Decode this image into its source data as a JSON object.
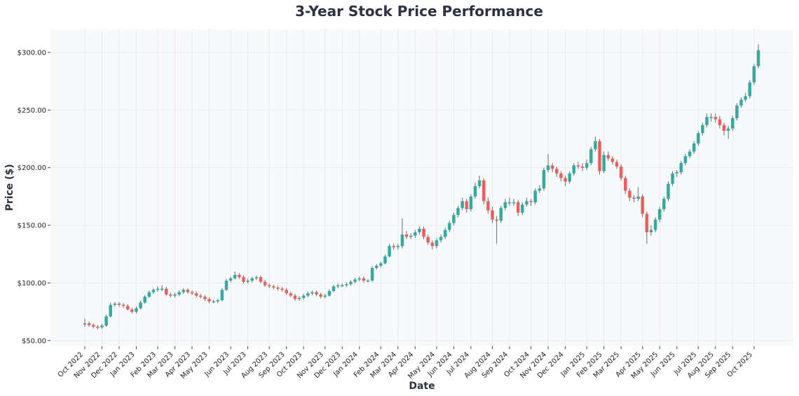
{
  "chart_data": {
    "type": "candlestick",
    "title": "3-Year Stock Price Performance",
    "xlabel": "Date",
    "ylabel": "Price ($)",
    "ylim": [
      45,
      320
    ],
    "yticks": [
      50,
      100,
      150,
      200,
      250,
      300
    ],
    "ytick_labels": [
      "$50.00",
      "$100.00",
      "$150.00",
      "$200.00",
      "$250.00",
      "$300.00"
    ],
    "xtick_labels": [
      "Oct 2022",
      "Nov 2022",
      "Dec 2022",
      "Jan 2023",
      "Feb 2023",
      "Mar 2023",
      "Apr 2023",
      "May 2023",
      "Jun 2023",
      "Jul 2023",
      "Aug 2023",
      "Sep 2023",
      "Oct 2023",
      "Nov 2023",
      "Dec 2023",
      "Jan 2024",
      "Feb 2024",
      "Mar 2024",
      "Apr 2024",
      "May 2024",
      "Jun 2024",
      "Jul 2024",
      "Aug 2024",
      "Sep 2024",
      "Oct 2024",
      "Nov 2024",
      "Dec 2024",
      "Jan 2025",
      "Feb 2025",
      "Mar 2025",
      "Apr 2025",
      "May 2025",
      "Jun 2025",
      "Jul 2025",
      "Aug 2025",
      "Sep 2025",
      "Oct 2025"
    ],
    "grid": true,
    "colors": {
      "up": "#26a69a",
      "down": "#ef5350",
      "background": "#f8f9fb",
      "grid": "#e9eaee",
      "title": "#2d3142"
    },
    "columns": [
      "date",
      "open",
      "high",
      "low",
      "close"
    ],
    "candles": [
      [
        "2022-10-10",
        64,
        69,
        62,
        65
      ],
      [
        "2022-10-17",
        65,
        66.5,
        62,
        63.5
      ],
      [
        "2022-10-24",
        63.5,
        65,
        60.5,
        62
      ],
      [
        "2022-10-31",
        62,
        63.5,
        60,
        61.5
      ],
      [
        "2022-11-07",
        61.5,
        64.5,
        60,
        63
      ],
      [
        "2022-11-14",
        63,
        72.5,
        62,
        71
      ],
      [
        "2022-11-21",
        71,
        83,
        70,
        81
      ],
      [
        "2022-11-28",
        81,
        83.5,
        79.5,
        82
      ],
      [
        "2022-12-05",
        82,
        83.5,
        79.5,
        81
      ],
      [
        "2022-12-12",
        81,
        82.5,
        78.5,
        80
      ],
      [
        "2022-12-19",
        80,
        81.5,
        76,
        77
      ],
      [
        "2022-12-26",
        77,
        78.5,
        73.5,
        75
      ],
      [
        "2023-01-02",
        75,
        79.5,
        73.5,
        78
      ],
      [
        "2023-01-09",
        78,
        84.5,
        77,
        83
      ],
      [
        "2023-01-16",
        83,
        89.5,
        82,
        88
      ],
      [
        "2023-01-23",
        88,
        93.5,
        87,
        92
      ],
      [
        "2023-01-30",
        92,
        95.5,
        90.5,
        94
      ],
      [
        "2023-02-06",
        94,
        97,
        92.5,
        95
      ],
      [
        "2023-02-13",
        95,
        98,
        93,
        95
      ],
      [
        "2023-02-20",
        95,
        96.5,
        88.5,
        90
      ],
      [
        "2023-02-27",
        90,
        91.5,
        87.5,
        89
      ],
      [
        "2023-03-06",
        89,
        91.5,
        87.5,
        90
      ],
      [
        "2023-03-13",
        90,
        93.5,
        88.5,
        92
      ],
      [
        "2023-03-20",
        92,
        95.5,
        90.5,
        94
      ],
      [
        "2023-03-27",
        94,
        95.5,
        90.5,
        92
      ],
      [
        "2023-04-03",
        92,
        93.5,
        89.5,
        91
      ],
      [
        "2023-04-10",
        91,
        92.5,
        87.5,
        89
      ],
      [
        "2023-04-17",
        89,
        90.5,
        86.5,
        88
      ],
      [
        "2023-04-24",
        88,
        89.5,
        84.5,
        86
      ],
      [
        "2023-05-01",
        86,
        87.5,
        82.5,
        84
      ],
      [
        "2023-05-08",
        84,
        85.5,
        82.5,
        84
      ],
      [
        "2023-05-15",
        84,
        86.5,
        82.5,
        85
      ],
      [
        "2023-05-22",
        85,
        95.5,
        84,
        94
      ],
      [
        "2023-05-29",
        94,
        103.5,
        93,
        102
      ],
      [
        "2023-06-05",
        102,
        105.5,
        100.5,
        104
      ],
      [
        "2023-06-12",
        104,
        110,
        103,
        107
      ],
      [
        "2023-06-19",
        107,
        108.5,
        103.5,
        105
      ],
      [
        "2023-06-26",
        105,
        106.5,
        99.5,
        101
      ],
      [
        "2023-07-03",
        101,
        103.5,
        99.5,
        102
      ],
      [
        "2023-07-10",
        102,
        105.5,
        100.5,
        104
      ],
      [
        "2023-07-17",
        104,
        106.5,
        102.5,
        105
      ],
      [
        "2023-07-24",
        105,
        106.5,
        99.5,
        101
      ],
      [
        "2023-07-31",
        101,
        102.5,
        96.5,
        98
      ],
      [
        "2023-08-07",
        98,
        99.5,
        95.5,
        97
      ],
      [
        "2023-08-14",
        97,
        98.5,
        94.5,
        96
      ],
      [
        "2023-08-21",
        96,
        97.5,
        93.5,
        95
      ],
      [
        "2023-08-28",
        95,
        96.5,
        92.5,
        94
      ],
      [
        "2023-09-04",
        94,
        95.5,
        89.5,
        91
      ],
      [
        "2023-09-11",
        91,
        92.5,
        87.5,
        89
      ],
      [
        "2023-09-18",
        89,
        90.5,
        84.5,
        86
      ],
      [
        "2023-09-25",
        86,
        88.5,
        84.5,
        87
      ],
      [
        "2023-10-02",
        87,
        90.5,
        85.5,
        89
      ],
      [
        "2023-10-09",
        89,
        92.5,
        87.5,
        91
      ],
      [
        "2023-10-16",
        91,
        93.5,
        89.5,
        92
      ],
      [
        "2023-10-23",
        92,
        93.5,
        88.5,
        90
      ],
      [
        "2023-10-30",
        90,
        91.5,
        86.5,
        88
      ],
      [
        "2023-11-06",
        88,
        90.5,
        86.5,
        89
      ],
      [
        "2023-11-13",
        89,
        94.5,
        88,
        93
      ],
      [
        "2023-11-20",
        93,
        98.5,
        92,
        97
      ],
      [
        "2023-11-27",
        97,
        99.5,
        95.5,
        98
      ],
      [
        "2023-12-04",
        98,
        99.5,
        96.5,
        98
      ],
      [
        "2023-12-11",
        98,
        100.5,
        96.5,
        99
      ],
      [
        "2023-12-18",
        99,
        102.5,
        97.5,
        101
      ],
      [
        "2023-12-25",
        101,
        104.5,
        99.5,
        103
      ],
      [
        "2024-01-01",
        103,
        105.5,
        101.5,
        104
      ],
      [
        "2024-01-08",
        104,
        105.5,
        100.5,
        102
      ],
      [
        "2024-01-15",
        102,
        103.5,
        100.5,
        102
      ],
      [
        "2024-01-22",
        102,
        114.5,
        101,
        113
      ],
      [
        "2024-01-29",
        113,
        116.5,
        111.5,
        115
      ],
      [
        "2024-02-05",
        115,
        118.5,
        113.5,
        117
      ],
      [
        "2024-02-12",
        117,
        124.5,
        116,
        123
      ],
      [
        "2024-02-19",
        123,
        134,
        122,
        132
      ],
      [
        "2024-02-26",
        132,
        134,
        129,
        131
      ],
      [
        "2024-03-04",
        131,
        134,
        129,
        132
      ],
      [
        "2024-03-11",
        132,
        156,
        130,
        142
      ],
      [
        "2024-03-18",
        142,
        145,
        138,
        140
      ],
      [
        "2024-03-25",
        140,
        143,
        138,
        141
      ],
      [
        "2024-04-01",
        141,
        146,
        139,
        144
      ],
      [
        "2024-04-08",
        144,
        149,
        142,
        147
      ],
      [
        "2024-04-15",
        147,
        149,
        138,
        140
      ],
      [
        "2024-04-22",
        140,
        142,
        133,
        135
      ],
      [
        "2024-04-29",
        135,
        137,
        129,
        132
      ],
      [
        "2024-05-06",
        132,
        139,
        130,
        137
      ],
      [
        "2024-05-13",
        137,
        142,
        135,
        140
      ],
      [
        "2024-05-20",
        140,
        148,
        138,
        146
      ],
      [
        "2024-05-27",
        146,
        154,
        144,
        152
      ],
      [
        "2024-06-03",
        152,
        161,
        150,
        159
      ],
      [
        "2024-06-10",
        159,
        167,
        157,
        165
      ],
      [
        "2024-06-17",
        165,
        174,
        163,
        171
      ],
      [
        "2024-06-24",
        171,
        173,
        161,
        164
      ],
      [
        "2024-07-01",
        164,
        177,
        162,
        175
      ],
      [
        "2024-07-08",
        175,
        187,
        173,
        184
      ],
      [
        "2024-07-15",
        184,
        193,
        182,
        189
      ],
      [
        "2024-07-22",
        189,
        191,
        168,
        171
      ],
      [
        "2024-07-29",
        171,
        174,
        160,
        163
      ],
      [
        "2024-08-05",
        163,
        166,
        152,
        155
      ],
      [
        "2024-08-12",
        155,
        158,
        134,
        154
      ],
      [
        "2024-08-19",
        154,
        167,
        152,
        165
      ],
      [
        "2024-08-26",
        165,
        173,
        163,
        170
      ],
      [
        "2024-09-02",
        170,
        174,
        167,
        170
      ],
      [
        "2024-09-09",
        170,
        173,
        167,
        170
      ],
      [
        "2024-09-16",
        170,
        172,
        158,
        161
      ],
      [
        "2024-09-23",
        161,
        170,
        159,
        168
      ],
      [
        "2024-09-30",
        168,
        174,
        166,
        171
      ],
      [
        "2024-10-07",
        171,
        173,
        167,
        170
      ],
      [
        "2024-10-14",
        170,
        182,
        168,
        180
      ],
      [
        "2024-10-21",
        180,
        185,
        178,
        182
      ],
      [
        "2024-10-28",
        182,
        200,
        180,
        198
      ],
      [
        "2024-11-04",
        198,
        212,
        196,
        202
      ],
      [
        "2024-11-11",
        202,
        204,
        196,
        199
      ],
      [
        "2024-11-18",
        199,
        201,
        192,
        195
      ],
      [
        "2024-11-25",
        195,
        197,
        188,
        191
      ],
      [
        "2024-12-02",
        191,
        193,
        184,
        188
      ],
      [
        "2024-12-09",
        188,
        197,
        186,
        195
      ],
      [
        "2024-12-16",
        195,
        204,
        193,
        202
      ],
      [
        "2024-12-23",
        202,
        205,
        199,
        201
      ],
      [
        "2024-12-30",
        201,
        204,
        197,
        200
      ],
      [
        "2025-01-06",
        200,
        207,
        198,
        204
      ],
      [
        "2025-01-13",
        204,
        218,
        202,
        216
      ],
      [
        "2025-01-20",
        216,
        227,
        214,
        223
      ],
      [
        "2025-01-27",
        223,
        225,
        194,
        197
      ],
      [
        "2025-02-03",
        197,
        214,
        195,
        211
      ],
      [
        "2025-02-10",
        211,
        214,
        206,
        208
      ],
      [
        "2025-02-17",
        208,
        210,
        203,
        205
      ],
      [
        "2025-02-24",
        205,
        207,
        199,
        201
      ],
      [
        "2025-03-03",
        201,
        203,
        189,
        191
      ],
      [
        "2025-03-10",
        191,
        193,
        177,
        180
      ],
      [
        "2025-03-17",
        180,
        182,
        171,
        174
      ],
      [
        "2025-03-24",
        174,
        176,
        170,
        173
      ],
      [
        "2025-03-31",
        173,
        183,
        171,
        175
      ],
      [
        "2025-04-07",
        175,
        177,
        157,
        160
      ],
      [
        "2025-04-14",
        160,
        162,
        134,
        144
      ],
      [
        "2025-04-21",
        144,
        150,
        141,
        146
      ],
      [
        "2025-04-28",
        146,
        157,
        144,
        155
      ],
      [
        "2025-05-05",
        155,
        166,
        153,
        164
      ],
      [
        "2025-05-12",
        164,
        175,
        162,
        173
      ],
      [
        "2025-05-19",
        173,
        188,
        171,
        186
      ],
      [
        "2025-05-26",
        186,
        197,
        184,
        195
      ],
      [
        "2025-06-02",
        195,
        198,
        192,
        196
      ],
      [
        "2025-06-09",
        196,
        206,
        194,
        204
      ],
      [
        "2025-06-16",
        204,
        212,
        202,
        210
      ],
      [
        "2025-06-23",
        210,
        216,
        208,
        214
      ],
      [
        "2025-06-30",
        214,
        223,
        212,
        221
      ],
      [
        "2025-07-07",
        221,
        232,
        219,
        230
      ],
      [
        "2025-07-14",
        230,
        239,
        228,
        237
      ],
      [
        "2025-07-21",
        237,
        247,
        235,
        244
      ],
      [
        "2025-07-28",
        244,
        247,
        240,
        244
      ],
      [
        "2025-08-04",
        244,
        247,
        239,
        242
      ],
      [
        "2025-08-11",
        242,
        245,
        234,
        237
      ],
      [
        "2025-08-18",
        237,
        239,
        228,
        232
      ],
      [
        "2025-08-25",
        232,
        236,
        225,
        234
      ],
      [
        "2025-09-01",
        234,
        245,
        232,
        243
      ],
      [
        "2025-09-08",
        243,
        256,
        241,
        254
      ],
      [
        "2025-09-15",
        254,
        261,
        252,
        259
      ],
      [
        "2025-09-22",
        259,
        265,
        257,
        262
      ],
      [
        "2025-09-29",
        262,
        276,
        260,
        274
      ],
      [
        "2025-10-06",
        274,
        290,
        272,
        288
      ],
      [
        "2025-10-13",
        288,
        307,
        286,
        302
      ]
    ]
  }
}
